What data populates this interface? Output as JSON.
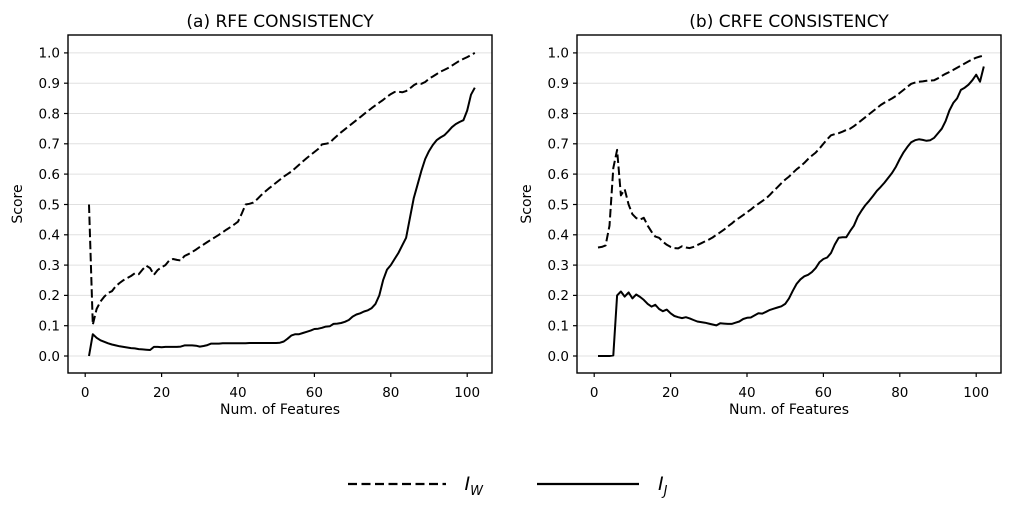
{
  "style": {
    "background": "#ffffff",
    "line_color": "#000000",
    "grid_color": "#e0e0e0",
    "spine_color": "#000000"
  },
  "legend": {
    "items": [
      {
        "label": "I",
        "subscript": "W",
        "line_style": "dashed"
      },
      {
        "label": "I",
        "subscript": "J",
        "line_style": "solid"
      }
    ]
  },
  "chart_data": [
    {
      "type": "line",
      "panel_id": "a",
      "title": "(a) RFE CONSISTENCY",
      "xlabel": "Num. of Features",
      "ylabel": "Score",
      "xlim": [
        -4.5,
        106.5
      ],
      "ylim": [
        -0.056,
        1.059
      ],
      "grid": "y-only",
      "legend_position": "bottom-center-shared",
      "xticks": [
        0,
        20,
        40,
        60,
        80,
        100
      ],
      "xticklabels": [
        "0",
        "20",
        "40",
        "60",
        "80",
        "100"
      ],
      "yticks": [
        0.0,
        0.1,
        0.2,
        0.3,
        0.4,
        0.5,
        0.6,
        0.7,
        0.8,
        0.9,
        1.0
      ],
      "yticklabels": [
        "0.0",
        "0.1",
        "0.2",
        "0.3",
        "0.4",
        "0.5",
        "0.6",
        "0.7",
        "0.8",
        "0.9",
        "1.0"
      ],
      "series": [
        {
          "name": "I_W",
          "key": "iw",
          "style": "dashed",
          "color": "#000000",
          "x0": 1,
          "dx": 1,
          "y": [
            0.5,
            0.103,
            0.155,
            0.18,
            0.196,
            0.208,
            0.214,
            0.23,
            0.241,
            0.25,
            0.257,
            0.264,
            0.273,
            0.27,
            0.285,
            0.298,
            0.29,
            0.268,
            0.284,
            0.293,
            0.3,
            0.315,
            0.32,
            0.317,
            0.315,
            0.33,
            0.336,
            0.343,
            0.351,
            0.36,
            0.368,
            0.376,
            0.384,
            0.392,
            0.4,
            0.408,
            0.417,
            0.425,
            0.434,
            0.443,
            0.47,
            0.5,
            0.502,
            0.506,
            0.517,
            0.53,
            0.541,
            0.552,
            0.562,
            0.572,
            0.582,
            0.592,
            0.6,
            0.609,
            0.62,
            0.631,
            0.642,
            0.653,
            0.663,
            0.673,
            0.683,
            0.698,
            0.7,
            0.703,
            0.716,
            0.727,
            0.738,
            0.748,
            0.758,
            0.768,
            0.778,
            0.788,
            0.798,
            0.808,
            0.818,
            0.827,
            0.836,
            0.845,
            0.855,
            0.864,
            0.871,
            0.872,
            0.87,
            0.874,
            0.883,
            0.893,
            0.9,
            0.898,
            0.904,
            0.915,
            0.922,
            0.93,
            0.938,
            0.944,
            0.95,
            0.958,
            0.966,
            0.974,
            0.98,
            0.986,
            0.993,
            1.0
          ]
        },
        {
          "name": "I_J",
          "key": "ij",
          "style": "solid",
          "color": "#000000",
          "x0": 1,
          "dx": 1,
          "y": [
            0.0,
            0.072,
            0.06,
            0.052,
            0.047,
            0.042,
            0.038,
            0.035,
            0.032,
            0.03,
            0.028,
            0.026,
            0.025,
            0.023,
            0.022,
            0.021,
            0.02,
            0.03,
            0.03,
            0.029,
            0.03,
            0.03,
            0.03,
            0.03,
            0.031,
            0.035,
            0.035,
            0.035,
            0.034,
            0.031,
            0.033,
            0.036,
            0.041,
            0.041,
            0.041,
            0.042,
            0.042,
            0.042,
            0.042,
            0.042,
            0.042,
            0.042,
            0.043,
            0.043,
            0.043,
            0.043,
            0.043,
            0.043,
            0.043,
            0.043,
            0.044,
            0.048,
            0.057,
            0.068,
            0.072,
            0.072,
            0.076,
            0.08,
            0.084,
            0.089,
            0.09,
            0.093,
            0.097,
            0.098,
            0.106,
            0.107,
            0.109,
            0.113,
            0.119,
            0.13,
            0.137,
            0.141,
            0.147,
            0.151,
            0.158,
            0.172,
            0.2,
            0.25,
            0.285,
            0.3,
            0.32,
            0.34,
            0.365,
            0.39,
            0.455,
            0.52,
            0.565,
            0.61,
            0.65,
            0.676,
            0.696,
            0.712,
            0.721,
            0.728,
            0.741,
            0.755,
            0.765,
            0.772,
            0.778,
            0.81,
            0.862,
            0.885
          ]
        }
      ]
    },
    {
      "type": "line",
      "panel_id": "b",
      "title": "(b) CRFE CONSISTENCY",
      "xlabel": "Num. of Features",
      "ylabel": "Score",
      "xlim": [
        -4.5,
        106.5
      ],
      "ylim": [
        -0.056,
        1.059
      ],
      "grid": "y-only",
      "legend_position": "bottom-center-shared",
      "xticks": [
        0,
        20,
        40,
        60,
        80,
        100
      ],
      "xticklabels": [
        "0",
        "20",
        "40",
        "60",
        "80",
        "100"
      ],
      "yticks": [
        0.0,
        0.1,
        0.2,
        0.3,
        0.4,
        0.5,
        0.6,
        0.7,
        0.8,
        0.9,
        1.0
      ],
      "yticklabels": [
        "0.0",
        "0.1",
        "0.2",
        "0.3",
        "0.4",
        "0.5",
        "0.6",
        "0.7",
        "0.8",
        "0.9",
        "1.0"
      ],
      "series": [
        {
          "name": "I_W",
          "key": "iw",
          "style": "dashed",
          "color": "#000000",
          "x0": 1,
          "dx": 1,
          "y": [
            0.358,
            0.36,
            0.365,
            0.43,
            0.62,
            0.68,
            0.53,
            0.55,
            0.5,
            0.468,
            0.455,
            0.45,
            0.456,
            0.43,
            0.41,
            0.394,
            0.39,
            0.377,
            0.367,
            0.36,
            0.356,
            0.355,
            0.362,
            0.358,
            0.356,
            0.36,
            0.366,
            0.372,
            0.378,
            0.384,
            0.391,
            0.4,
            0.408,
            0.417,
            0.428,
            0.437,
            0.448,
            0.456,
            0.465,
            0.474,
            0.483,
            0.494,
            0.502,
            0.511,
            0.52,
            0.532,
            0.545,
            0.557,
            0.57,
            0.582,
            0.592,
            0.604,
            0.616,
            0.626,
            0.637,
            0.65,
            0.661,
            0.671,
            0.685,
            0.7,
            0.715,
            0.728,
            0.732,
            0.735,
            0.74,
            0.746,
            0.75,
            0.758,
            0.768,
            0.778,
            0.788,
            0.798,
            0.808,
            0.818,
            0.828,
            0.836,
            0.843,
            0.85,
            0.858,
            0.868,
            0.878,
            0.888,
            0.898,
            0.902,
            0.905,
            0.906,
            0.908,
            0.909,
            0.91,
            0.916,
            0.924,
            0.931,
            0.937,
            0.944,
            0.951,
            0.958,
            0.965,
            0.972,
            0.979,
            0.984,
            0.988,
            0.991
          ]
        },
        {
          "name": "I_J",
          "key": "ij",
          "style": "solid",
          "color": "#000000",
          "x0": 1,
          "dx": 1,
          "y": [
            0.0,
            0.0,
            0.0,
            0.0,
            0.002,
            0.2,
            0.213,
            0.196,
            0.21,
            0.19,
            0.203,
            0.195,
            0.185,
            0.172,
            0.163,
            0.169,
            0.155,
            0.148,
            0.153,
            0.141,
            0.132,
            0.128,
            0.125,
            0.128,
            0.124,
            0.119,
            0.114,
            0.112,
            0.11,
            0.107,
            0.104,
            0.101,
            0.108,
            0.107,
            0.106,
            0.106,
            0.11,
            0.114,
            0.122,
            0.126,
            0.127,
            0.134,
            0.141,
            0.14,
            0.146,
            0.152,
            0.156,
            0.16,
            0.164,
            0.172,
            0.19,
            0.215,
            0.238,
            0.253,
            0.263,
            0.268,
            0.277,
            0.29,
            0.31,
            0.32,
            0.325,
            0.34,
            0.368,
            0.39,
            0.392,
            0.392,
            0.412,
            0.43,
            0.46,
            0.48,
            0.498,
            0.512,
            0.528,
            0.545,
            0.558,
            0.572,
            0.588,
            0.604,
            0.625,
            0.65,
            0.672,
            0.69,
            0.705,
            0.712,
            0.715,
            0.713,
            0.71,
            0.712,
            0.72,
            0.735,
            0.75,
            0.775,
            0.81,
            0.835,
            0.85,
            0.878,
            0.885,
            0.895,
            0.91,
            0.928,
            0.905,
            0.955
          ]
        }
      ]
    }
  ]
}
